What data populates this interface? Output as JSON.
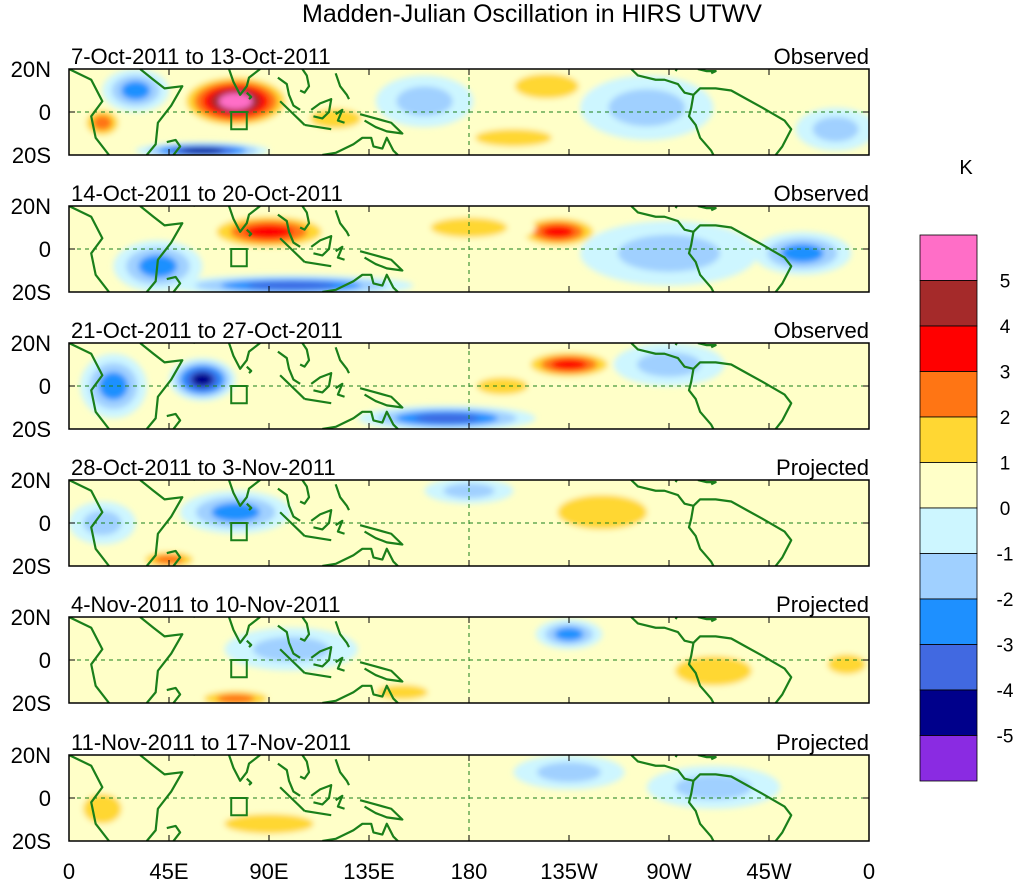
{
  "chart_data": {
    "type": "heatmap",
    "title": "Madden-Julian Oscillation in HIRS UTWV",
    "units": "K",
    "x_ticks": [
      "0",
      "45E",
      "90E",
      "135E",
      "180",
      "135W",
      "90W",
      "45W",
      "0"
    ],
    "y_ticks": [
      "20N",
      "0",
      "20S"
    ],
    "colorbar": {
      "levels": [
        "5",
        "4",
        "3",
        "2",
        "1",
        "0",
        "-1",
        "-2",
        "-3",
        "-4",
        "-5"
      ],
      "colors": [
        "#ff6ec7",
        "#a52a2a",
        "#ff0000",
        "#ff7514",
        "#ffd733",
        "#ffffc8",
        "#cdf6ff",
        "#a0d0ff",
        "#1e90ff",
        "#4169e1",
        "#00008b",
        "#8a2be2"
      ]
    },
    "panels": [
      {
        "period": "7-Oct-2011 to 13-Oct-2011",
        "status": "Observed",
        "features": [
          {
            "lon": 75,
            "lat": 5,
            "value": 5.5,
            "sx": 26,
            "sy": 13
          },
          {
            "lon": 120,
            "lat": -3,
            "value": 2,
            "sx": 20,
            "sy": 8
          },
          {
            "lon": 60,
            "lat": -18,
            "value": -4.5,
            "sx": 30,
            "sy": 4
          },
          {
            "lon": 30,
            "lat": 10,
            "value": -2.5,
            "sx": 15,
            "sy": 10
          },
          {
            "lon": 15,
            "lat": -5,
            "value": 2.5,
            "sx": 10,
            "sy": 8
          },
          {
            "lon": 160,
            "lat": 5,
            "value": -2,
            "sx": 22,
            "sy": 12
          },
          {
            "lon": 215,
            "lat": 12,
            "value": 1.8,
            "sx": 25,
            "sy": 10
          },
          {
            "lon": 200,
            "lat": -12,
            "value": 2,
            "sx": 30,
            "sy": 7
          },
          {
            "lon": 260,
            "lat": 2,
            "value": -1.2,
            "sx": 30,
            "sy": 15
          },
          {
            "lon": 345,
            "lat": -8,
            "value": -2,
            "sx": 18,
            "sy": 10
          }
        ]
      },
      {
        "period": "14-Oct-2011 to 20-Oct-2011",
        "status": "Observed",
        "features": [
          {
            "lon": 90,
            "lat": 8,
            "value": 3.5,
            "sx": 30,
            "sy": 9
          },
          {
            "lon": 220,
            "lat": 8,
            "value": 3.5,
            "sx": 20,
            "sy": 8
          },
          {
            "lon": 100,
            "lat": -17,
            "value": -4,
            "sx": 55,
            "sy": 5
          },
          {
            "lon": 40,
            "lat": -8,
            "value": -2.5,
            "sx": 20,
            "sy": 12
          },
          {
            "lon": 180,
            "lat": 10,
            "value": 1.5,
            "sx": 30,
            "sy": 8
          },
          {
            "lon": 330,
            "lat": -2,
            "value": -3,
            "sx": 22,
            "sy": 10
          },
          {
            "lon": 270,
            "lat": -2,
            "value": -1.5,
            "sx": 40,
            "sy": 15
          }
        ]
      },
      {
        "period": "21-Oct-2011 to 27-Oct-2011",
        "status": "Observed",
        "features": [
          {
            "lon": 60,
            "lat": 3,
            "value": -4.5,
            "sx": 15,
            "sy": 10
          },
          {
            "lon": 20,
            "lat": 0,
            "value": -2.5,
            "sx": 15,
            "sy": 15
          },
          {
            "lon": 225,
            "lat": 10,
            "value": 3.5,
            "sx": 22,
            "sy": 7
          },
          {
            "lon": 170,
            "lat": -15,
            "value": -3.5,
            "sx": 40,
            "sy": 6
          },
          {
            "lon": 195,
            "lat": 0,
            "value": 1.8,
            "sx": 20,
            "sy": 7
          },
          {
            "lon": 270,
            "lat": 10,
            "value": -1.5,
            "sx": 25,
            "sy": 10
          },
          {
            "lon": 100,
            "lat": 5,
            "value": 1,
            "sx": 20,
            "sy": 12
          }
        ]
      },
      {
        "period": "28-Oct-2011 to 3-Nov-2011",
        "status": "Projected",
        "features": [
          {
            "lon": 75,
            "lat": 5,
            "value": -3,
            "sx": 25,
            "sy": 10
          },
          {
            "lon": 45,
            "lat": -17,
            "value": 2.5,
            "sx": 15,
            "sy": 5
          },
          {
            "lon": 240,
            "lat": 5,
            "value": 1.5,
            "sx": 35,
            "sy": 14
          },
          {
            "lon": 180,
            "lat": 15,
            "value": -1.5,
            "sx": 20,
            "sy": 6
          },
          {
            "lon": 15,
            "lat": 0,
            "value": -1.5,
            "sx": 15,
            "sy": 10
          },
          {
            "lon": 330,
            "lat": -5,
            "value": 1,
            "sx": 25,
            "sy": 12
          }
        ]
      },
      {
        "period": "4-Nov-2011 to 10-Nov-2011",
        "status": "Projected",
        "features": [
          {
            "lon": 75,
            "lat": -18,
            "value": 2.5,
            "sx": 20,
            "sy": 5
          },
          {
            "lon": 150,
            "lat": -15,
            "value": 2,
            "sx": 20,
            "sy": 6
          },
          {
            "lon": 225,
            "lat": 12,
            "value": -2.5,
            "sx": 15,
            "sy": 7
          },
          {
            "lon": 350,
            "lat": -2,
            "value": 2,
            "sx": 15,
            "sy": 8
          },
          {
            "lon": 100,
            "lat": 5,
            "value": -1.5,
            "sx": 30,
            "sy": 10
          },
          {
            "lon": 290,
            "lat": -5,
            "value": 1.2,
            "sx": 30,
            "sy": 12
          }
        ]
      },
      {
        "period": "11-Nov-2011 to 17-Nov-2011",
        "status": "Projected",
        "features": [
          {
            "lon": 90,
            "lat": -12,
            "value": 1.5,
            "sx": 35,
            "sy": 8
          },
          {
            "lon": 225,
            "lat": 12,
            "value": -1.5,
            "sx": 25,
            "sy": 8
          },
          {
            "lon": 290,
            "lat": 5,
            "value": -1.2,
            "sx": 30,
            "sy": 10
          },
          {
            "lon": 15,
            "lat": -5,
            "value": 1.2,
            "sx": 15,
            "sy": 12
          }
        ]
      }
    ]
  }
}
